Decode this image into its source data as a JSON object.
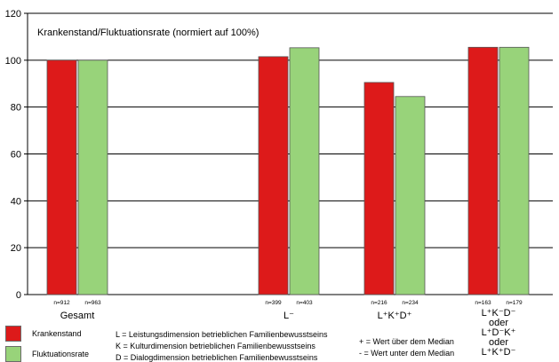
{
  "chart_data": {
    "type": "bar",
    "title": "Krankenstand/Fluktuationsrate (normiert auf 100%)",
    "xlabel": "",
    "ylabel": "",
    "ylim": [
      0,
      120
    ],
    "yticks": [
      0,
      20,
      40,
      60,
      80,
      100,
      120
    ],
    "grid": true,
    "categories": [
      "Gesamt",
      "L⁻",
      "L⁺K⁺D⁺",
      "L⁺K⁻D⁻ oder L⁺D⁻K⁺ oder L⁺K⁺D⁻"
    ],
    "series": [
      {
        "name": "Krankenstand",
        "color": "#dd1a1a",
        "values": [
          100,
          101.5,
          90.5,
          105.5
        ],
        "n_labels": [
          "n=912",
          "n=399",
          "n=216",
          "n=163"
        ]
      },
      {
        "name": "Fluktuationsrate",
        "color": "#98d37a",
        "values": [
          100,
          105.3,
          84.5,
          105.5
        ],
        "n_labels": [
          "n=963",
          "n=403",
          "n=234",
          "n=179"
        ]
      }
    ],
    "category_label_lines": [
      [
        "Gesamt"
      ],
      [
        "L⁻"
      ],
      [
        "L⁺K⁺D⁺"
      ],
      [
        "L⁺K⁻D⁻",
        "oder",
        "L⁺D⁻K⁺",
        "oder",
        "L⁺K⁺D⁻"
      ]
    ],
    "legend_placement": "bottom-left"
  },
  "notes": {
    "l_def": "L = Leistungsdimension betrieblichen Familienbewusstseins",
    "k_def": "K = Kulturdimension betrieblichen Familienbewusstseins",
    "d_def": "D = Dialogdimension betrieblichen Familienbewusstseins",
    "plus_def": "+ = Wert über dem Median",
    "minus_def": "- = Wert unter dem Median"
  }
}
